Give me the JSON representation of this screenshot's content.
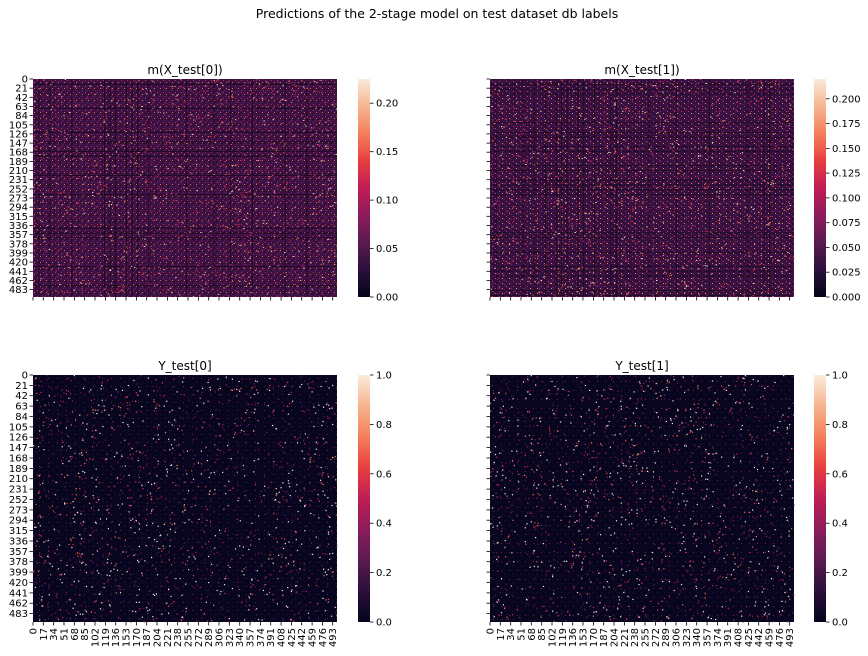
{
  "figure": {
    "title": "Predictions of the 2-stage model on test dataset db labels"
  },
  "chart_data": [
    {
      "type": "heatmap",
      "title": "m(X_test[0])",
      "rows": 500,
      "cols": 500,
      "ytick_labels": [
        "0",
        "21",
        "42",
        "63",
        "84",
        "105",
        "126",
        "147",
        "168",
        "189",
        "210",
        "231",
        "252",
        "273",
        "294",
        "315",
        "336",
        "357",
        "378",
        "399",
        "420",
        "441",
        "462",
        "483"
      ],
      "xtick_labels_visible": false,
      "vmin": 0.0,
      "vmax": 0.225,
      "colorbar_ticks": [
        "0.00",
        "0.05",
        "0.10",
        "0.15",
        "0.20"
      ],
      "colormap": "rocket"
    },
    {
      "type": "heatmap",
      "title": "m(X_test[1])",
      "rows": 500,
      "cols": 500,
      "ytick_labels_visible": false,
      "xtick_labels_visible": false,
      "vmin": 0.0,
      "vmax": 0.22,
      "colorbar_ticks": [
        "0.000",
        "0.025",
        "0.050",
        "0.075",
        "0.100",
        "0.125",
        "0.150",
        "0.175",
        "0.200"
      ],
      "colormap": "rocket"
    },
    {
      "type": "heatmap",
      "title": "Y_test[0]",
      "rows": 500,
      "cols": 500,
      "ytick_labels": [
        "0",
        "21",
        "42",
        "63",
        "84",
        "105",
        "126",
        "147",
        "168",
        "189",
        "210",
        "231",
        "252",
        "273",
        "294",
        "315",
        "336",
        "357",
        "378",
        "399",
        "420",
        "441",
        "462",
        "483"
      ],
      "xtick_labels": [
        "0",
        "17",
        "34",
        "51",
        "68",
        "85",
        "102",
        "119",
        "136",
        "153",
        "170",
        "187",
        "204",
        "221",
        "238",
        "255",
        "272",
        "289",
        "306",
        "323",
        "340",
        "357",
        "374",
        "391",
        "408",
        "425",
        "442",
        "459",
        "476",
        "493"
      ],
      "vmin": 0.0,
      "vmax": 1.0,
      "colorbar_ticks": [
        "0.0",
        "0.2",
        "0.4",
        "0.6",
        "0.8",
        "1.0"
      ],
      "colormap": "rocket"
    },
    {
      "type": "heatmap",
      "title": "Y_test[1]",
      "rows": 500,
      "cols": 500,
      "ytick_labels_visible": false,
      "xtick_labels": [
        "0",
        "17",
        "34",
        "51",
        "68",
        "85",
        "102",
        "119",
        "136",
        "153",
        "170",
        "187",
        "204",
        "221",
        "238",
        "255",
        "272",
        "289",
        "306",
        "323",
        "340",
        "357",
        "374",
        "391",
        "408",
        "425",
        "442",
        "459",
        "476",
        "493"
      ],
      "vmin": 0.0,
      "vmax": 1.0,
      "colorbar_ticks": [
        "0.0",
        "0.2",
        "0.4",
        "0.6",
        "0.8",
        "1.0"
      ],
      "colormap": "rocket"
    }
  ],
  "colors": {
    "cmap_stops": [
      "#03051a",
      "#2b0f3c",
      "#5b1a51",
      "#8c1c5b",
      "#bf1d55",
      "#e83f3f",
      "#f4805a",
      "#f6b48f",
      "#faebdd"
    ]
  }
}
